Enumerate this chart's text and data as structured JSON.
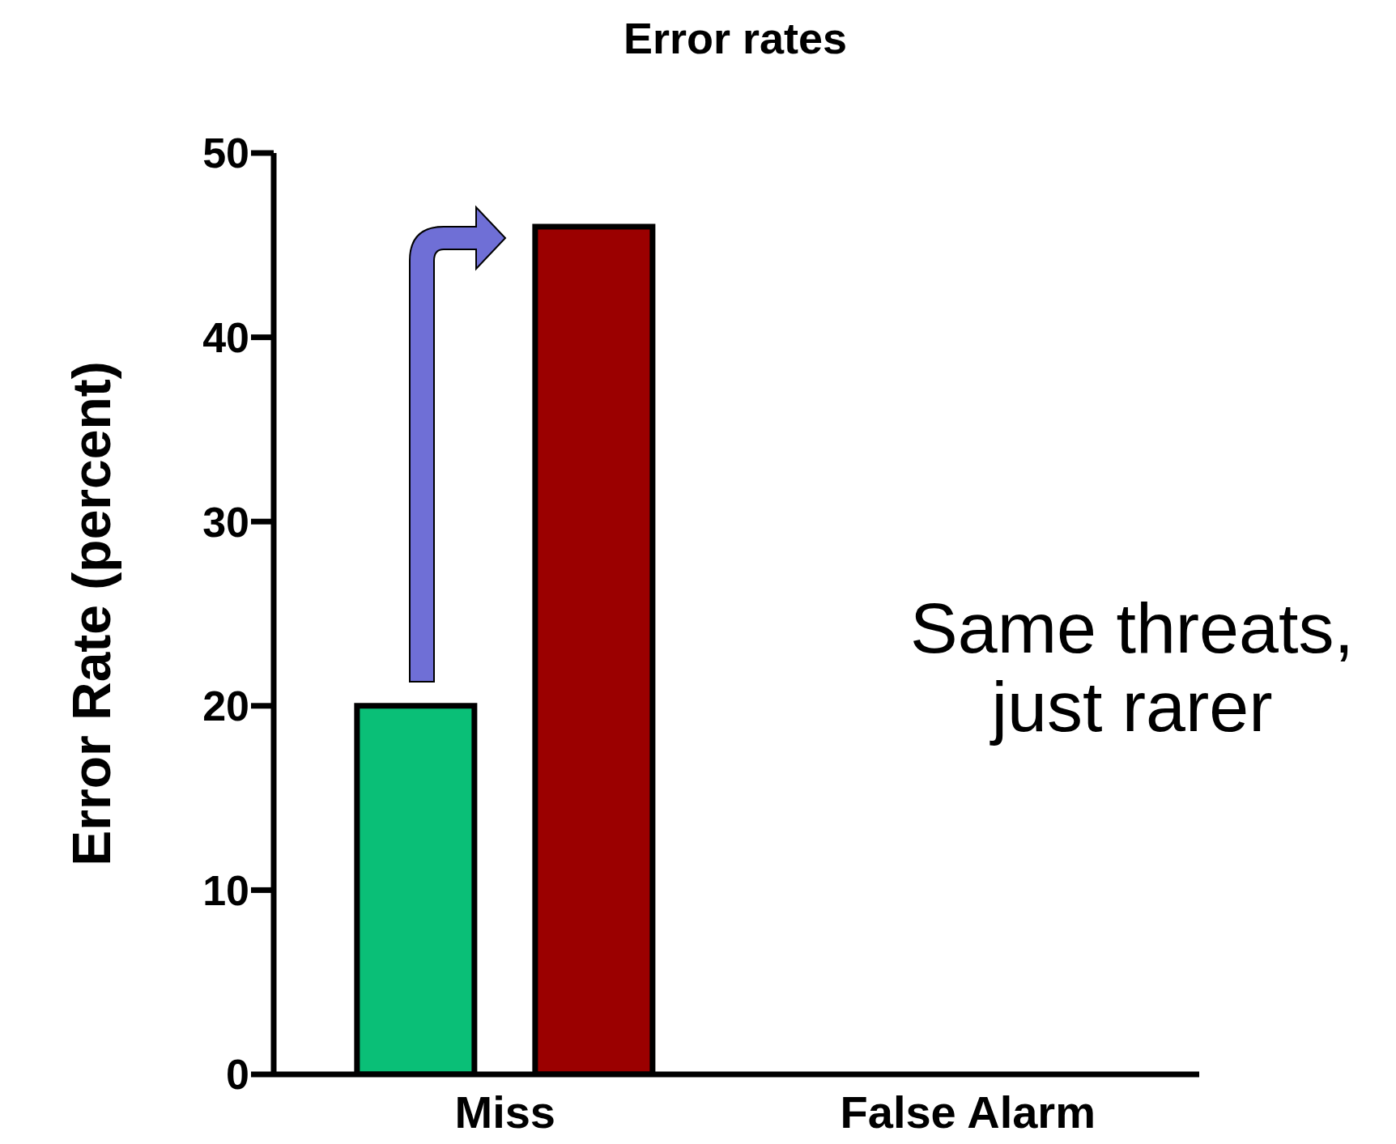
{
  "chart_data": {
    "type": "bar",
    "title": "Error rates",
    "ylabel": "Error Rate (percent)",
    "categories": [
      "Miss",
      "False Alarm"
    ],
    "series": [
      {
        "color": "#0abf77",
        "values": [
          20,
          null
        ]
      },
      {
        "color": "#9b0000",
        "values": [
          46,
          null
        ]
      }
    ],
    "ylim": [
      0,
      50
    ],
    "yticks": [
      0,
      10,
      20,
      30,
      40,
      50
    ],
    "annotations": [
      "Same threats, just rarer"
    ]
  }
}
